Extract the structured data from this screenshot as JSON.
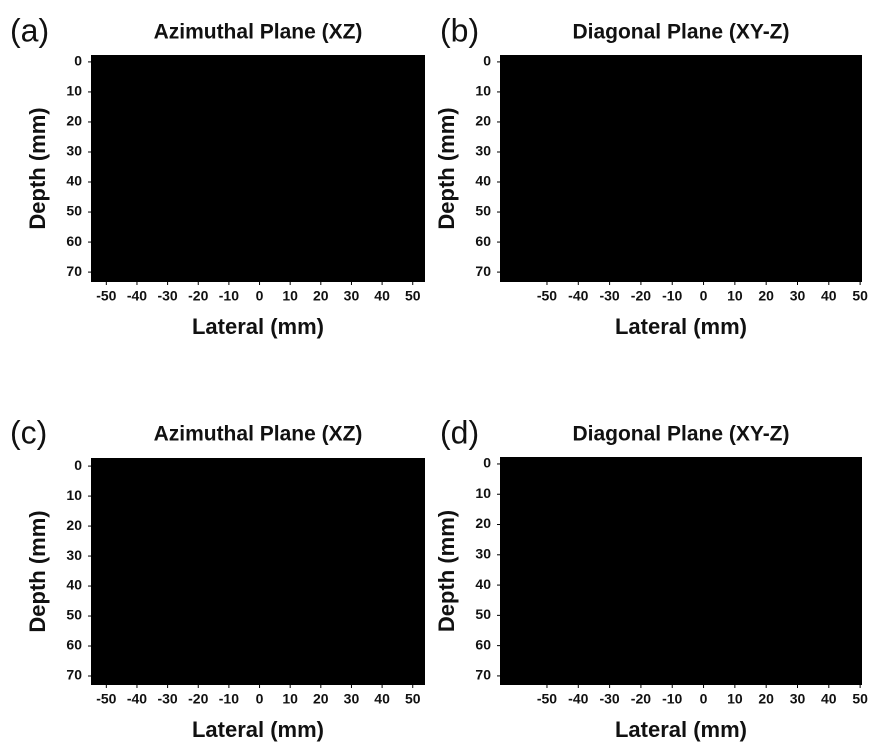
{
  "chart_data": [
    {
      "type": "image",
      "panel": "(a)",
      "title": "Azimuthal Plane (XZ)",
      "xlabel": "Lateral (mm)",
      "ylabel": "Depth (mm)",
      "xlim": [
        -55,
        54
      ],
      "ylim": [
        -2.3,
        73.3
      ],
      "xticks": [
        -50,
        -40,
        -30,
        -20,
        -10,
        0,
        10,
        20,
        30,
        40,
        50
      ],
      "yticks": [
        0,
        10,
        20,
        30,
        40,
        50,
        60,
        70
      ],
      "y_inverted": true,
      "background": "#000000"
    },
    {
      "type": "image",
      "panel": "(b)",
      "title": "Diagonal Plane (XY-Z)",
      "xlabel": "Lateral (mm)",
      "ylabel": "Depth (mm)",
      "xlim": [
        -65,
        50.6
      ],
      "ylim": [
        -2.3,
        73.3
      ],
      "xticks": [
        -50,
        -40,
        -30,
        -20,
        -10,
        0,
        10,
        20,
        30,
        40,
        50
      ],
      "yticks": [
        0,
        10,
        20,
        30,
        40,
        50,
        60,
        70
      ],
      "y_inverted": true,
      "background": "#000000"
    },
    {
      "type": "image",
      "panel": "(c)",
      "title": "Azimuthal Plane (XZ)",
      "xlabel": "Lateral (mm)",
      "ylabel": "Depth (mm)",
      "xlim": [
        -55,
        54
      ],
      "ylim": [
        -2.7,
        73
      ],
      "xticks": [
        -50,
        -40,
        -30,
        -20,
        -10,
        0,
        10,
        20,
        30,
        40,
        50
      ],
      "yticks": [
        0,
        10,
        20,
        30,
        40,
        50,
        60,
        70
      ],
      "y_inverted": true,
      "background": "#000000"
    },
    {
      "type": "image",
      "panel": "(d)",
      "title": "Diagonal Plane (XY-Z)",
      "xlabel": "Lateral (mm)",
      "ylabel": "Depth (mm)",
      "xlim": [
        -65,
        50.6
      ],
      "ylim": [
        -2.3,
        73
      ],
      "xticks": [
        -50,
        -40,
        -30,
        -20,
        -10,
        0,
        10,
        20,
        30,
        40,
        50
      ],
      "yticks": [
        0,
        10,
        20,
        30,
        40,
        50,
        60,
        70
      ],
      "y_inverted": true,
      "background": "#000000"
    }
  ]
}
